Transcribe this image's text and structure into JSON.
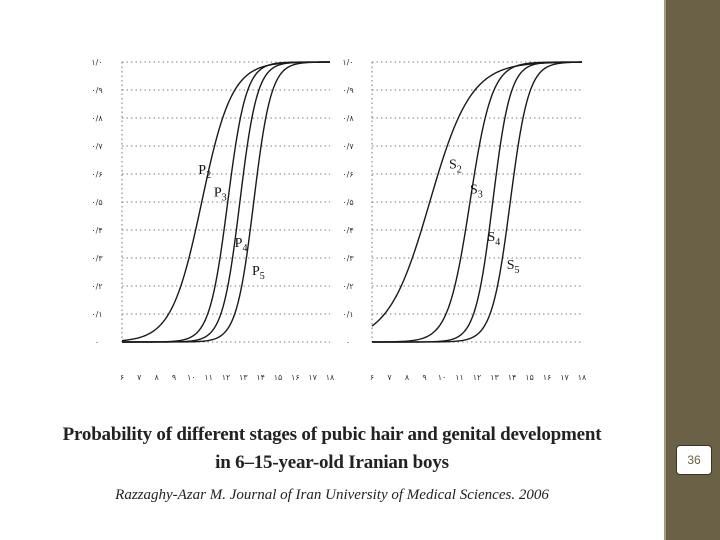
{
  "slide": {
    "page_number": "36",
    "caption_title_line1": "Probability of different stages of pubic hair and genital development",
    "caption_title_line2": "in 6–15-year-old Iranian boys",
    "caption_source": "Razzaghy-Azar M. Journal of Iran University of Medical Sciences. 2006",
    "colors": {
      "sidebar": "#6b6146",
      "divider": "#a39a80",
      "curve": "#1a1a1a",
      "grid": "#555555"
    }
  },
  "chart_data": [
    {
      "type": "line",
      "title": "",
      "xlabel": "",
      "ylabel": "",
      "xlim": [
        6,
        18
      ],
      "ylim": [
        0,
        1
      ],
      "grid": "dotted horizontal",
      "x_ticks": [
        6,
        7,
        8,
        9,
        10,
        11,
        12,
        13,
        14,
        15,
        16,
        17,
        18
      ],
      "x_tick_labels": [
        "۶",
        "۷",
        "۸",
        "۹",
        "۱۰",
        "۱۱",
        "۱۲",
        "۱۳",
        "۱۴",
        "۱۵",
        "۱۶",
        "۱۷",
        "۱۸"
      ],
      "y_ticks": [
        0,
        0.1,
        0.2,
        0.3,
        0.4,
        0.5,
        0.6,
        0.7,
        0.8,
        0.9,
        1.0
      ],
      "y_tick_labels": [
        "۰",
        "۰/۱",
        "۰/۲",
        "۰/۳",
        "۰/۴",
        "۰/۵",
        "۰/۶",
        "۰/۷",
        "۰/۸",
        "۰/۹",
        "۱/۰"
      ],
      "series": [
        {
          "name": "P2",
          "label_main": "P",
          "label_sub": "2",
          "label_at": [
            10.4,
            0.6
          ],
          "midpoint": 10.6,
          "slope": 1.15
        },
        {
          "name": "P3",
          "label_main": "P",
          "label_sub": "3",
          "label_at": [
            11.3,
            0.52
          ],
          "midpoint": 12.1,
          "slope": 1.9
        },
        {
          "name": "P4",
          "label_main": "P",
          "label_sub": "4",
          "label_at": [
            12.5,
            0.34
          ],
          "midpoint": 12.8,
          "slope": 2.0
        },
        {
          "name": "P5",
          "label_main": "P",
          "label_sub": "5",
          "label_at": [
            13.5,
            0.24
          ],
          "midpoint": 13.6,
          "slope": 2.0
        }
      ]
    },
    {
      "type": "line",
      "title": "",
      "xlabel": "",
      "ylabel": "",
      "xlim": [
        6,
        18
      ],
      "ylim": [
        0,
        1
      ],
      "grid": "dotted horizontal",
      "x_ticks": [
        6,
        7,
        8,
        9,
        10,
        11,
        12,
        13,
        14,
        15,
        16,
        17,
        18
      ],
      "x_tick_labels": [
        "۶",
        "۷",
        "۸",
        "۹",
        "۱۰",
        "۱۱",
        "۱۲",
        "۱۳",
        "۱۴",
        "۱۵",
        "۱۶",
        "۱۷",
        "۱۸"
      ],
      "y_ticks": [
        0,
        0.1,
        0.2,
        0.3,
        0.4,
        0.5,
        0.6,
        0.7,
        0.8,
        0.9,
        1.0
      ],
      "y_tick_labels": [
        "۰",
        "۰/۱",
        "۰/۲",
        "۰/۳",
        "۰/۴",
        "۰/۵",
        "۰/۶",
        "۰/۷",
        "۰/۸",
        "۰/۹",
        "۱/۰"
      ],
      "series": [
        {
          "name": "S2",
          "label_main": "S",
          "label_sub": "2",
          "label_at": [
            10.4,
            0.62
          ],
          "midpoint": 9.3,
          "slope": 0.85
        },
        {
          "name": "S3",
          "label_main": "S",
          "label_sub": "3",
          "label_at": [
            11.6,
            0.53
          ],
          "midpoint": 11.6,
          "slope": 1.6
        },
        {
          "name": "S4",
          "label_main": "S",
          "label_sub": "4",
          "label_at": [
            12.6,
            0.36
          ],
          "midpoint": 12.9,
          "slope": 2.0
        },
        {
          "name": "S5",
          "label_main": "S",
          "label_sub": "5",
          "label_at": [
            13.7,
            0.26
          ],
          "midpoint": 13.9,
          "slope": 1.9
        }
      ]
    }
  ]
}
